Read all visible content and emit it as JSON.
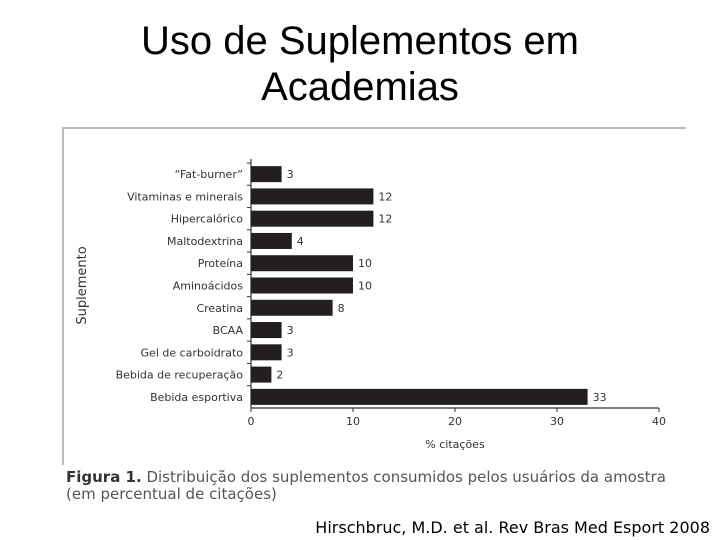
{
  "page": {
    "title_line1": "Uso de Suplementos em",
    "title_line2": "Academias",
    "caption_label": "Figura 1.",
    "caption_text": " Distribuição dos suplementos consumidos pelos usuários da amostra (em percentual de citações)",
    "citation": "Hirschbruc, M.D. et al. Rev Bras Med Esport 2008"
  },
  "chart_data": {
    "type": "bar",
    "orientation": "horizontal",
    "categories": [
      "“Fat-burner”",
      "Vitaminas e minerais",
      "Hipercalórico",
      "Maltodextrina",
      "Proteína",
      "Aminoácidos",
      "Creatina",
      "BCAA",
      "Gel de carboidrato",
      "Bebida de recuperação",
      "Bebida esportiva"
    ],
    "values": [
      3,
      12,
      12,
      4,
      10,
      10,
      8,
      3,
      3,
      2,
      33
    ],
    "value_labels": [
      "3",
      "12",
      "12",
      "4",
      "10",
      "10",
      "8",
      "3",
      "3",
      "2",
      "33"
    ],
    "xlabel": "% citações",
    "ylabel": "Suplemento",
    "xlim": [
      0,
      40
    ],
    "xticks": [
      0,
      10,
      20,
      30,
      40
    ],
    "xtick_labels": [
      "0",
      "10",
      "20",
      "30",
      "40"
    ],
    "grid": false,
    "colors": {
      "bar": "#231f20",
      "axis": "#333333",
      "text": "#333333"
    }
  }
}
